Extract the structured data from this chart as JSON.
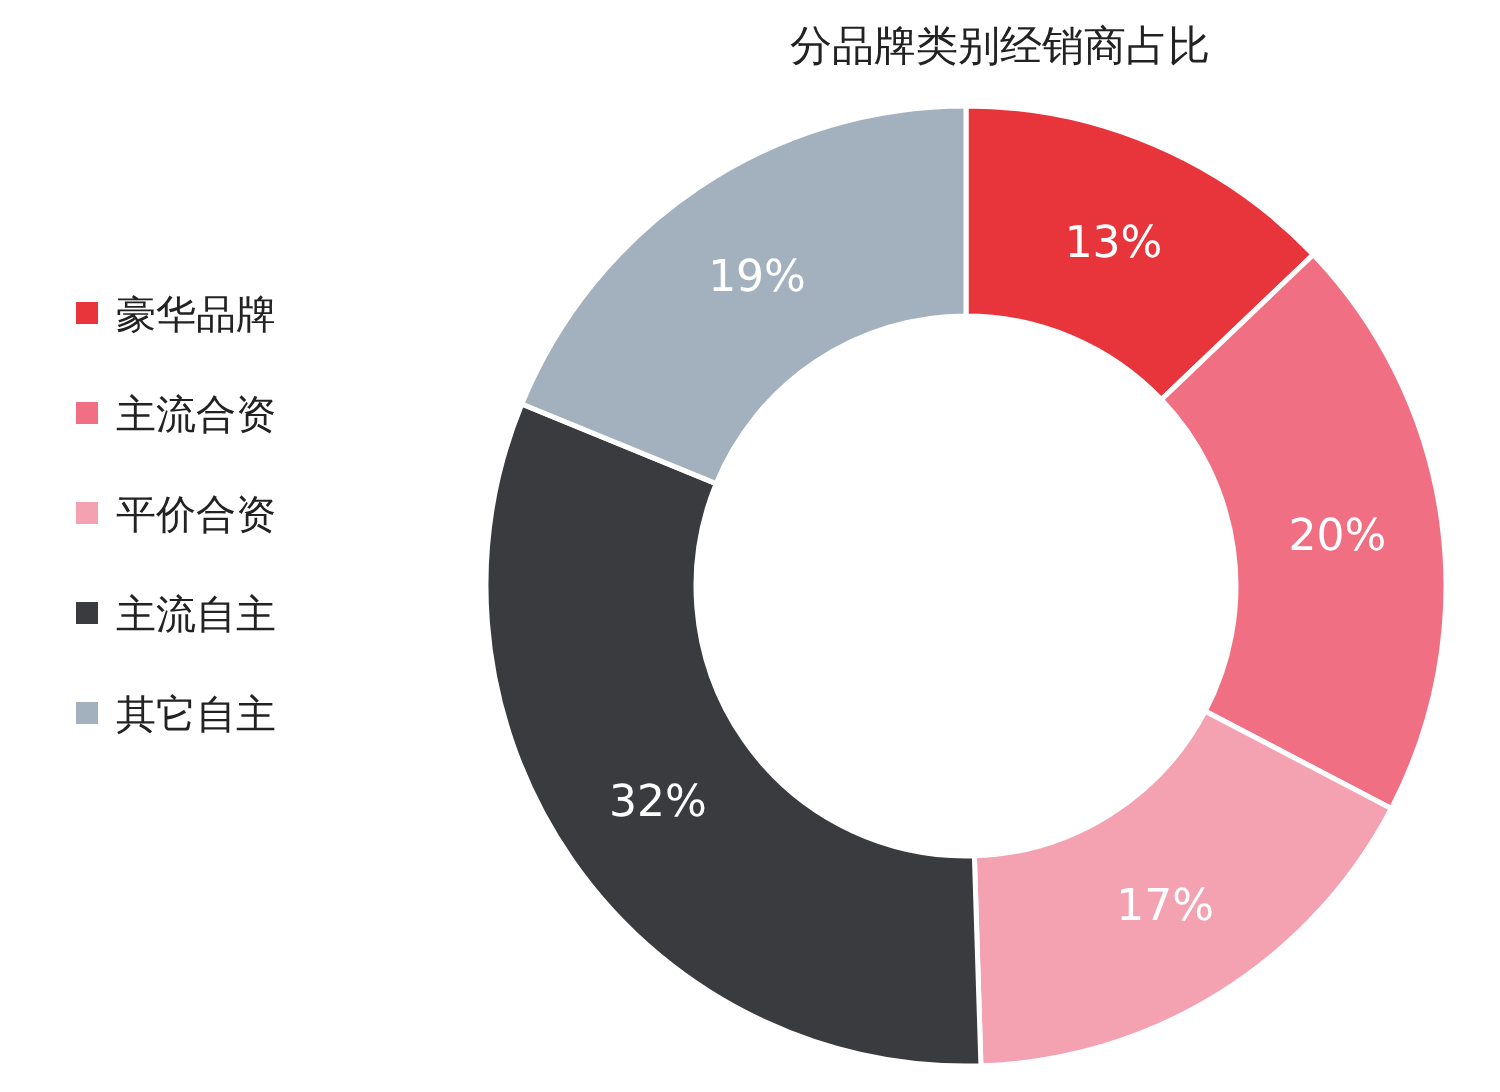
{
  "chart_data": {
    "type": "donut",
    "title": "分品牌类别经销商占比",
    "categories": [
      "豪华品牌",
      "主流合资",
      "平价合资",
      "主流自主",
      "其它自主"
    ],
    "values": [
      13,
      20,
      17,
      32,
      19
    ],
    "colors": [
      "#e8353b",
      "#f06f83",
      "#f4a1b2",
      "#3a3b3e",
      "#a3b1be"
    ],
    "value_labels": [
      "13%",
      "20%",
      "17%",
      "32%",
      "19%"
    ],
    "legend": "left"
  }
}
